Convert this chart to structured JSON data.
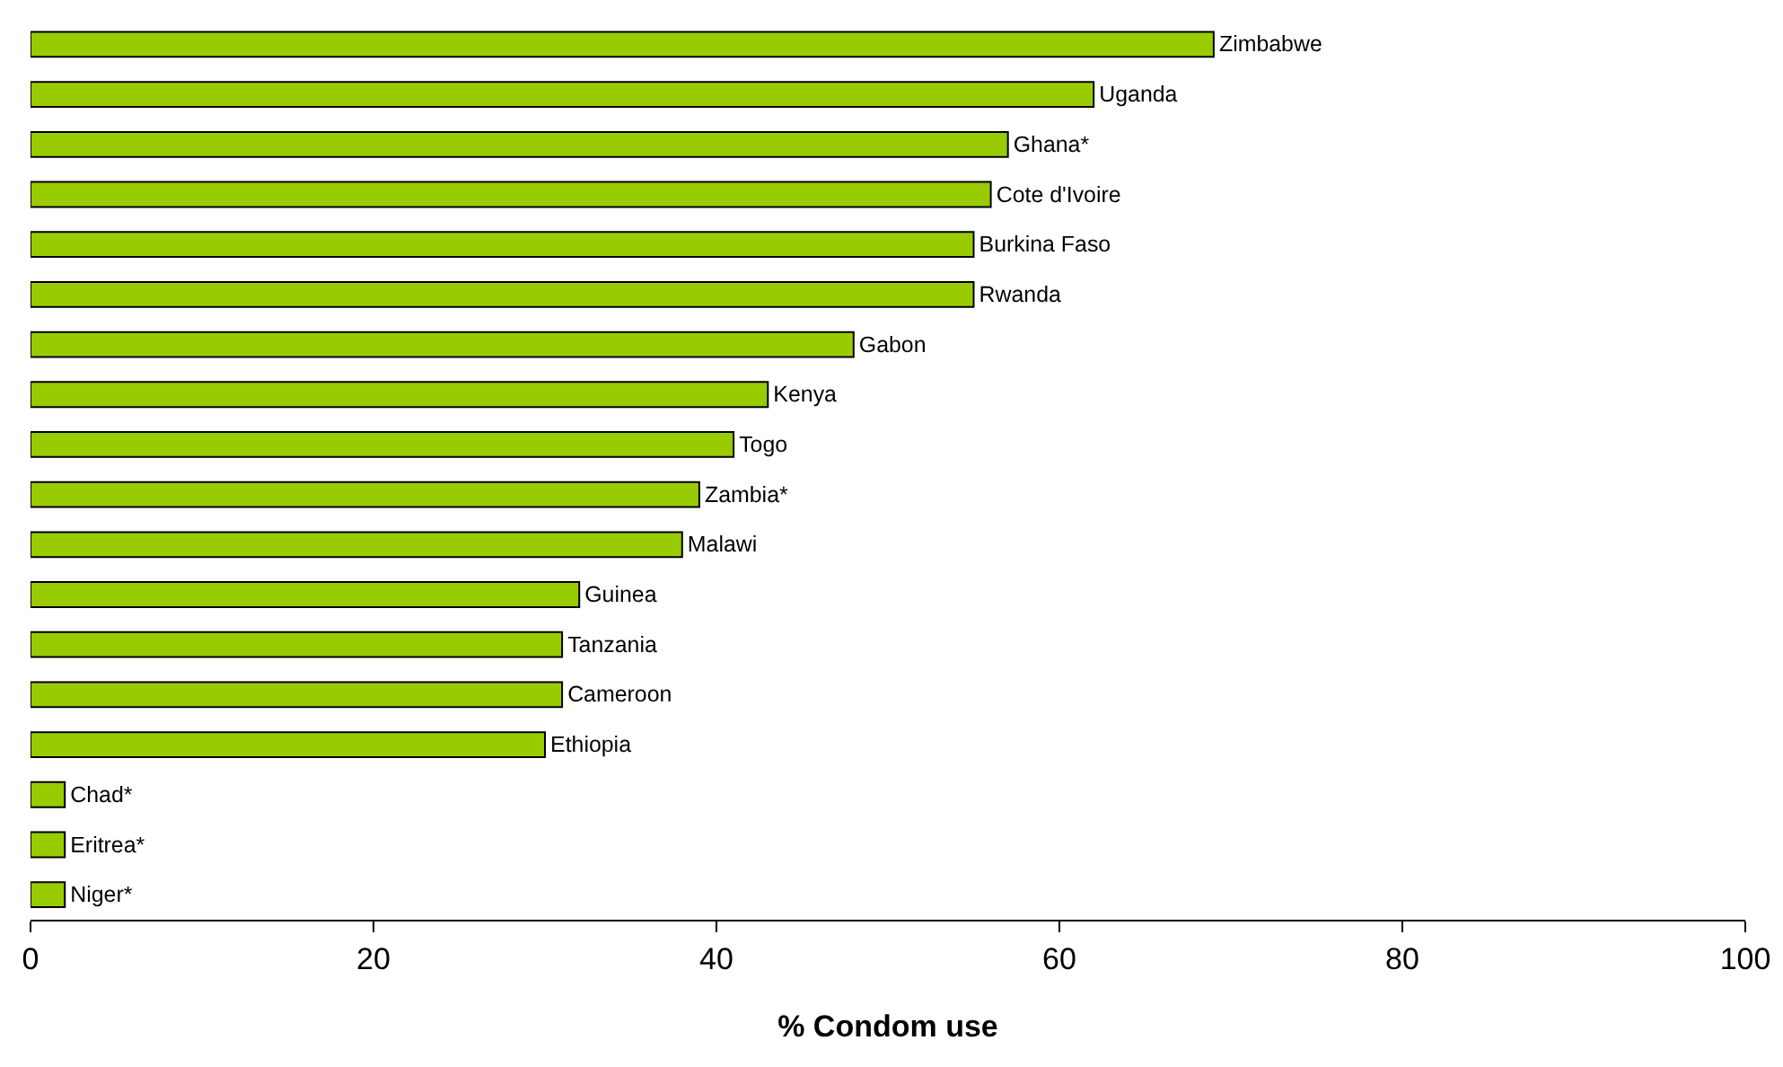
{
  "chart_data": {
    "type": "bar",
    "orientation": "horizontal",
    "xlabel": "% Condom use",
    "categories": [
      "Zimbabwe",
      "Uganda",
      "Ghana*",
      "Cote d'Ivoire",
      "Burkina Faso",
      "Rwanda",
      "Gabon",
      "Kenya",
      "Togo",
      "Zambia*",
      "Malawi",
      "Guinea",
      "Tanzania",
      "Cameroon",
      "Ethiopia",
      "Chad*",
      "Eritrea*",
      "Niger*"
    ],
    "values": [
      69,
      62,
      57,
      56,
      55,
      55,
      48,
      43,
      41,
      39,
      38,
      32,
      31,
      31,
      30,
      2,
      2,
      2
    ],
    "color": "#99cc00",
    "xlim": [
      0,
      100
    ],
    "xticks": [
      0,
      20,
      40,
      60,
      80,
      100
    ],
    "tick_labels": "x"
  }
}
